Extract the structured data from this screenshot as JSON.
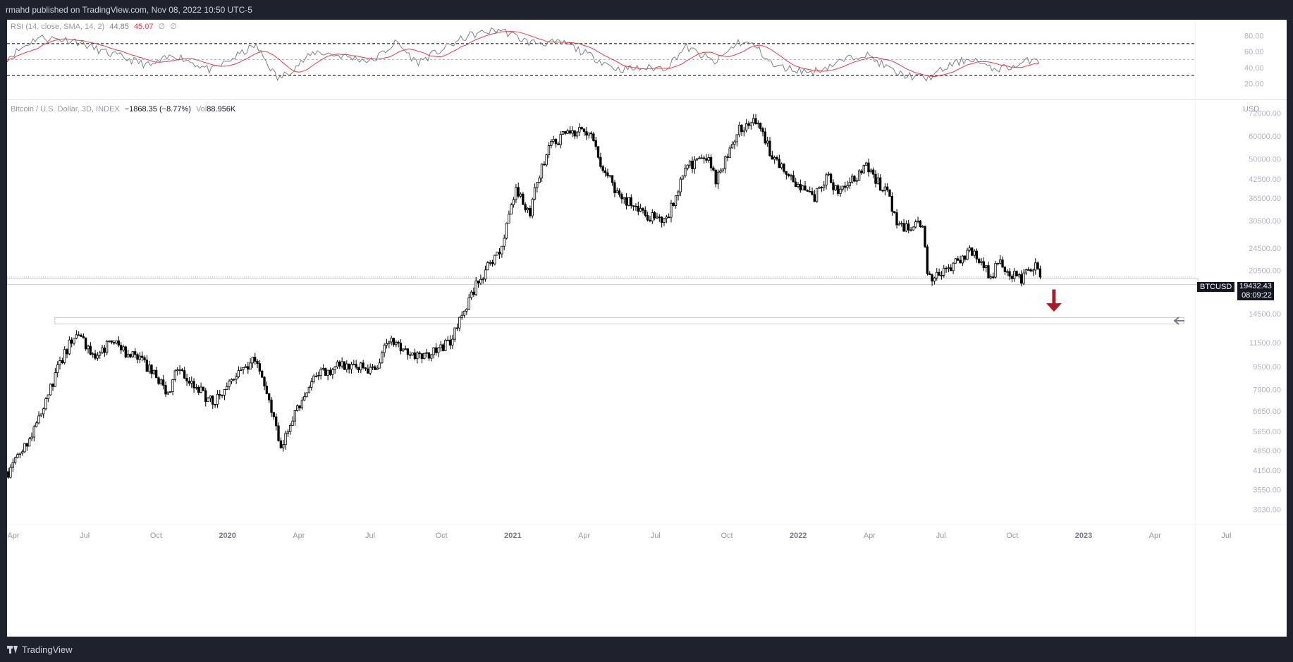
{
  "header": {
    "text": "rmahd published on TradingView.com, Nov 08, 2022 10:50 UTC-5"
  },
  "footer": {
    "brand": "TradingView",
    "logo_icon": "tradingview-logo-icon"
  },
  "rsi_pane": {
    "legend": {
      "name": "RSI (14, close, SMA, 14, 2)",
      "rsi_value": "44.85",
      "sma_value": "45.07",
      "extra1": "∅",
      "extra2": "∅"
    },
    "ticks": [
      "80.00",
      "60.00",
      "40.00",
      "20.00"
    ],
    "colors": {
      "rsi": "#808080",
      "sma": "#f23645",
      "bands": "#000000"
    }
  },
  "price_pane": {
    "legend": {
      "symbol": "Bitcoin / U.S. Dollar, 3D, INDEX",
      "change": "−1868.35 (−8.77%)",
      "vol_label": "Vol",
      "vol_value": "88.956K"
    },
    "currency": "USD",
    "price_ticks": [
      "72000.00",
      "60000.00",
      "50000.00",
      "42500.00",
      "36500.00",
      "30500.00",
      "24500.00",
      "20500.00",
      "14500.00",
      "11500.00",
      "9500.00",
      "7900.00",
      "6650.00",
      "5650.00",
      "4850.00",
      "4150.00",
      "3550.00",
      "3030.00"
    ],
    "last_price": {
      "symbol": "BTCUSD",
      "value": "19432.43",
      "countdown": "08:09:22"
    },
    "time_labels": [
      {
        "t": "Apr",
        "bold": false
      },
      {
        "t": "Jul",
        "bold": false
      },
      {
        "t": "Oct",
        "bold": false
      },
      {
        "t": "2020",
        "bold": true
      },
      {
        "t": "Apr",
        "bold": false
      },
      {
        "t": "Jul",
        "bold": false
      },
      {
        "t": "Oct",
        "bold": false
      },
      {
        "t": "2021",
        "bold": true
      },
      {
        "t": "Apr",
        "bold": false
      },
      {
        "t": "Jul",
        "bold": false
      },
      {
        "t": "Oct",
        "bold": false
      },
      {
        "t": "2022",
        "bold": true
      },
      {
        "t": "Apr",
        "bold": false
      },
      {
        "t": "Jul",
        "bold": false
      },
      {
        "t": "Oct",
        "bold": false
      },
      {
        "t": "2023",
        "bold": true
      },
      {
        "t": "Apr",
        "bold": false
      },
      {
        "t": "Jul",
        "bold": false
      }
    ],
    "annotations": {
      "down_arrow_color": "#a61e28",
      "down_arrow_icon": "down-arrow-icon",
      "left_arrow_icon": "left-arrow-icon"
    }
  },
  "chart_data": {
    "type": "candlestick",
    "scale": "log",
    "interval": "3D",
    "start": "2019-04-01",
    "end": "2022-11-08",
    "xlim": [
      "2019-04-01",
      "2023-07-01"
    ],
    "ylim": [
      2700,
      80000
    ],
    "price_path": [
      [
        "2019-04-01",
        4100
      ],
      [
        "2019-05-01",
        5500
      ],
      [
        "2019-05-25",
        8000
      ],
      [
        "2019-06-26",
        12500
      ],
      [
        "2019-07-20",
        10000
      ],
      [
        "2019-08-10",
        11500
      ],
      [
        "2019-09-20",
        9800
      ],
      [
        "2019-10-25",
        7500
      ],
      [
        "2019-11-01",
        9200
      ],
      [
        "2019-12-18",
        7100
      ],
      [
        "2020-01-15",
        8800
      ],
      [
        "2020-02-12",
        10300
      ],
      [
        "2020-03-12",
        5000
      ],
      [
        "2020-03-18",
        5300
      ],
      [
        "2020-04-29",
        8800
      ],
      [
        "2020-06-01",
        9700
      ],
      [
        "2020-07-10",
        9200
      ],
      [
        "2020-08-02",
        11800
      ],
      [
        "2020-09-05",
        10200
      ],
      [
        "2020-10-15",
        11400
      ],
      [
        "2020-11-20",
        18500
      ],
      [
        "2020-12-20",
        24000
      ],
      [
        "2021-01-08",
        40000
      ],
      [
        "2021-01-25",
        32000
      ],
      [
        "2021-02-20",
        56000
      ],
      [
        "2021-03-14",
        61000
      ],
      [
        "2021-04-14",
        63000
      ],
      [
        "2021-04-25",
        49000
      ],
      [
        "2021-05-19",
        37000
      ],
      [
        "2021-06-22",
        32000
      ],
      [
        "2021-07-20",
        30500
      ],
      [
        "2021-08-14",
        47000
      ],
      [
        "2021-09-07",
        51000
      ],
      [
        "2021-09-21",
        42000
      ],
      [
        "2021-10-20",
        64000
      ],
      [
        "2021-11-10",
        67000
      ],
      [
        "2021-12-04",
        49000
      ],
      [
        "2022-01-22",
        36000
      ],
      [
        "2022-02-10",
        44000
      ],
      [
        "2022-02-24",
        37000
      ],
      [
        "2022-03-29",
        47000
      ],
      [
        "2022-04-25",
        38500
      ],
      [
        "2022-05-12",
        29000
      ],
      [
        "2022-06-10",
        29500
      ],
      [
        "2022-06-18",
        19000
      ],
      [
        "2022-07-05",
        20000
      ],
      [
        "2022-08-14",
        24300
      ],
      [
        "2022-09-07",
        19000
      ],
      [
        "2022-09-13",
        22300
      ],
      [
        "2022-10-12",
        19000
      ],
      [
        "2022-10-30",
        20800
      ],
      [
        "2022-11-05",
        21200
      ],
      [
        "2022-11-08",
        19432.43
      ]
    ],
    "rsi_series": [
      [
        "2019-04-01",
        52
      ],
      [
        "2019-05-10",
        78
      ],
      [
        "2019-06-26",
        74
      ],
      [
        "2019-08-01",
        60
      ],
      [
        "2019-10-01",
        42
      ],
      [
        "2019-11-01",
        56
      ],
      [
        "2019-12-18",
        36
      ],
      [
        "2020-02-12",
        68
      ],
      [
        "2020-03-12",
        25
      ],
      [
        "2020-04-29",
        60
      ],
      [
        "2020-07-10",
        48
      ],
      [
        "2020-08-10",
        72
      ],
      [
        "2020-09-05",
        46
      ],
      [
        "2020-11-10",
        80
      ],
      [
        "2020-12-20",
        88
      ],
      [
        "2021-01-25",
        72
      ],
      [
        "2021-03-14",
        70
      ],
      [
        "2021-05-19",
        38
      ],
      [
        "2021-07-20",
        40
      ],
      [
        "2021-08-14",
        66
      ],
      [
        "2021-09-21",
        46
      ],
      [
        "2021-10-20",
        72
      ],
      [
        "2021-11-10",
        68
      ],
      [
        "2021-12-04",
        42
      ],
      [
        "2022-01-22",
        34
      ],
      [
        "2022-03-29",
        58
      ],
      [
        "2022-05-12",
        32
      ],
      [
        "2022-06-18",
        26
      ],
      [
        "2022-07-20",
        44
      ],
      [
        "2022-08-14",
        52
      ],
      [
        "2022-09-07",
        38
      ],
      [
        "2022-10-12",
        42
      ],
      [
        "2022-11-05",
        54
      ],
      [
        "2022-11-08",
        44.85
      ]
    ],
    "rsi_sma": 45.07,
    "rsi_bands": [
      70,
      50,
      30
    ],
    "horizontal_levels": [
      {
        "type": "line",
        "price": 19432.43
      },
      {
        "type": "rect",
        "price_top": 19200,
        "price_bottom": 18300,
        "from": "2019-04-01",
        "to": "2023-05-30"
      },
      {
        "type": "rect",
        "price_top": 14050,
        "price_bottom": 13350,
        "from": "2019-06-01",
        "to": "2023-05-12"
      }
    ],
    "projection_arrow": {
      "date": "2022-11-27",
      "price_from": 17600,
      "price_to": 14900
    }
  }
}
